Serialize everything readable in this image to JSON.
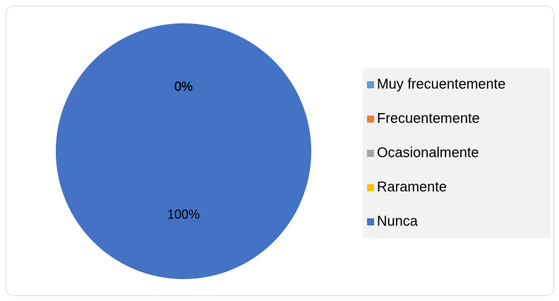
{
  "chart_data": {
    "type": "pie",
    "categories": [
      "Muy frecuentemente",
      "Frecuentemente",
      "Ocasionalmente",
      "Raramente",
      "Nunca"
    ],
    "values": [
      0,
      0,
      0,
      0,
      100
    ],
    "value_labels": [
      "0%",
      "0%",
      "0%",
      "0%",
      "100%"
    ],
    "colors": [
      "#5b9bd5",
      "#ed7d31",
      "#a5a5a5",
      "#ffc000",
      "#4472c4"
    ],
    "legend": "right"
  }
}
